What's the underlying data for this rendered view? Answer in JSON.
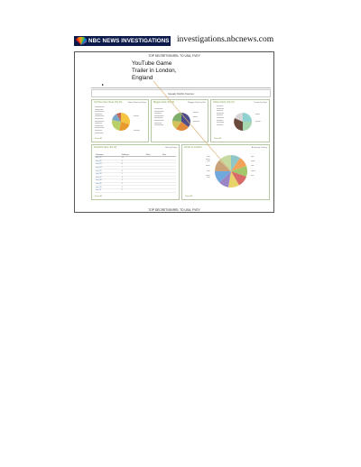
{
  "header": {
    "logo_text": "NBC NEWS INVESTIGATIONS",
    "site": "investigations.nbcnews.com"
  },
  "document": {
    "classification_top": "TOP SECRET//SI//REL TO USA, FVEY",
    "classification_bottom": "TOP SECRET//SI//REL TO USA, FVEY",
    "caption": "YouTube Game Trailer in London, England",
    "banner": "Squeaky Dolphin Overview",
    "panels": [
      {
        "title": "YouTube Video Views (Top 10)",
        "right": "Video Views by Game"
      },
      {
        "title": "Blogger Visits (Top 10)",
        "right": "Blogger Visits by Site"
      },
      {
        "title": "Twitter Activity (Top 10)",
        "right": "Tweets by Topic"
      },
      {
        "title": "Facebook Likes (Top 10)",
        "right": "Likes by Page"
      },
      {
        "title": "Activity by Location",
        "right": "Activity by Country"
      }
    ],
    "table_headers": [
      "Username",
      "Followers",
      "Posts",
      "Date"
    ],
    "table_rows": [
      [
        "user_01",
        "12"
      ],
      [
        "user_02",
        "9"
      ],
      [
        "user_03",
        "8"
      ],
      [
        "user_04",
        "7"
      ],
      [
        "user_05",
        "6"
      ],
      [
        "user_06",
        "5"
      ],
      [
        "user_07",
        "4"
      ],
      [
        "user_08",
        "3"
      ],
      [
        "user_09",
        "3"
      ],
      [
        "user_10",
        "2"
      ],
      [
        "user_11",
        "2"
      ]
    ],
    "show_all": "Show All",
    "colors": {
      "logo_bg": "#0b1a4a",
      "panel_border": "#b5c9a5",
      "accent_green": "#7a9a40",
      "connector": "#e0b37a"
    }
  }
}
